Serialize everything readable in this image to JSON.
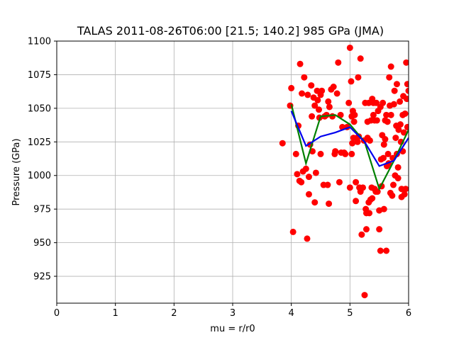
{
  "chart_data": {
    "type": "scatter",
    "title": "TALAS 2011-08-26T06:00 [21.5; 140.2] 985 GPa (JMA)",
    "xlabel": "mu = r/r0",
    "ylabel": "Pressure (GPa)",
    "xlim": [
      0,
      6
    ],
    "ylim": [
      905,
      1100
    ],
    "xticks": [
      0,
      1,
      2,
      3,
      4,
      5,
      6
    ],
    "yticks": [
      925,
      950,
      975,
      1000,
      1025,
      1050,
      1075,
      1100
    ],
    "grid": true,
    "series": [
      {
        "type": "scatter",
        "color": "#ff0000",
        "points": [
          [
            3.85,
            1024
          ],
          [
            3.98,
            1052
          ],
          [
            4.0,
            1065
          ],
          [
            4.03,
            958
          ],
          [
            4.08,
            1016
          ],
          [
            4.1,
            1001
          ],
          [
            4.12,
            1037
          ],
          [
            4.14,
            996
          ],
          [
            4.15,
            1083
          ],
          [
            4.17,
            995
          ],
          [
            4.18,
            1061
          ],
          [
            4.2,
            1003
          ],
          [
            4.22,
            1073
          ],
          [
            4.25,
            1005
          ],
          [
            4.27,
            953
          ],
          [
            4.28,
            1060
          ],
          [
            4.3,
            999
          ],
          [
            4.3,
            986
          ],
          [
            4.32,
            1023
          ],
          [
            4.34,
            1067
          ],
          [
            4.35,
            1044
          ],
          [
            4.36,
            1018
          ],
          [
            4.38,
            1058
          ],
          [
            4.4,
            980
          ],
          [
            4.4,
            1052
          ],
          [
            4.42,
            1002
          ],
          [
            4.44,
            1063
          ],
          [
            4.45,
            1056
          ],
          [
            4.47,
            1049
          ],
          [
            4.48,
            1043
          ],
          [
            4.5,
            1016
          ],
          [
            4.5,
            1060
          ],
          [
            4.52,
            1063
          ],
          [
            4.55,
            993
          ],
          [
            4.57,
            1044
          ],
          [
            4.6,
            1045
          ],
          [
            4.62,
            993
          ],
          [
            4.63,
            1055
          ],
          [
            4.64,
            979
          ],
          [
            4.65,
            1051
          ],
          [
            4.68,
            1064
          ],
          [
            4.7,
            1044
          ],
          [
            4.72,
            1066
          ],
          [
            4.74,
            1016
          ],
          [
            4.75,
            1018
          ],
          [
            4.78,
            1061
          ],
          [
            4.8,
            1084
          ],
          [
            4.82,
            995
          ],
          [
            4.84,
            1045
          ],
          [
            4.85,
            1017
          ],
          [
            4.87,
            1036
          ],
          [
            4.9,
            1017
          ],
          [
            4.92,
            1016
          ],
          [
            4.95,
            1036
          ],
          [
            5.0,
            1095
          ],
          [
            4.98,
            1054
          ],
          [
            5.0,
            991
          ],
          [
            5.02,
            1070
          ],
          [
            5.03,
            1044
          ],
          [
            5.03,
            1016
          ],
          [
            5.04,
            1024
          ],
          [
            5.05,
            1048
          ],
          [
            5.06,
            1028
          ],
          [
            5.07,
            1040
          ],
          [
            5.08,
            1045
          ],
          [
            5.1,
            995
          ],
          [
            5.1,
            981
          ],
          [
            5.12,
            1028
          ],
          [
            5.13,
            1025
          ],
          [
            5.14,
            1073
          ],
          [
            5.15,
            1029
          ],
          [
            5.16,
            991
          ],
          [
            5.18,
            1087
          ],
          [
            5.18,
            988
          ],
          [
            5.2,
            956
          ],
          [
            5.22,
            991
          ],
          [
            5.24,
            1026
          ],
          [
            5.25,
            911
          ],
          [
            5.26,
            1054
          ],
          [
            5.27,
            975
          ],
          [
            5.28,
            960
          ],
          [
            5.28,
            972
          ],
          [
            5.3,
            1040
          ],
          [
            5.3,
            1028
          ],
          [
            5.32,
            1054
          ],
          [
            5.32,
            980
          ],
          [
            5.33,
            972
          ],
          [
            5.34,
            1026
          ],
          [
            5.35,
            982
          ],
          [
            5.36,
            1041
          ],
          [
            5.37,
            991
          ],
          [
            5.38,
            1057
          ],
          [
            5.38,
            983
          ],
          [
            5.4,
            1054
          ],
          [
            5.4,
            1045
          ],
          [
            5.42,
            1041
          ],
          [
            5.42,
            990
          ],
          [
            5.44,
            988
          ],
          [
            5.45,
            1054
          ],
          [
            5.46,
            1041
          ],
          [
            5.47,
            988
          ],
          [
            5.48,
            1048
          ],
          [
            5.5,
            960
          ],
          [
            5.5,
            974
          ],
          [
            5.52,
            944
          ],
          [
            5.52,
            1051
          ],
          [
            5.53,
            1012
          ],
          [
            5.54,
            992
          ],
          [
            5.55,
            1030
          ],
          [
            5.56,
            1054
          ],
          [
            5.57,
            1013
          ],
          [
            5.58,
            975
          ],
          [
            5.58,
            1023
          ],
          [
            5.6,
            1041
          ],
          [
            5.6,
            1027
          ],
          [
            5.62,
            944
          ],
          [
            5.62,
            1045
          ],
          [
            5.63,
            1007
          ],
          [
            5.64,
            1040
          ],
          [
            5.65,
            1016
          ],
          [
            5.66,
            1009
          ],
          [
            5.67,
            1073
          ],
          [
            5.68,
            1052
          ],
          [
            5.69,
            987
          ],
          [
            5.7,
            1081
          ],
          [
            5.7,
            1045
          ],
          [
            5.72,
            985
          ],
          [
            5.73,
            1013
          ],
          [
            5.74,
            993
          ],
          [
            5.75,
            1053
          ],
          [
            5.76,
            1063
          ],
          [
            5.77,
            1000
          ],
          [
            5.78,
            1028
          ],
          [
            5.79,
            1037
          ],
          [
            5.8,
            1068
          ],
          [
            5.8,
            1016
          ],
          [
            5.82,
            1006
          ],
          [
            5.82,
            998
          ],
          [
            5.83,
            1034
          ],
          [
            5.85,
            1055
          ],
          [
            5.86,
            1038
          ],
          [
            5.87,
            1025
          ],
          [
            5.88,
            990
          ],
          [
            5.88,
            984
          ],
          [
            5.9,
            1045
          ],
          [
            5.9,
            1018
          ],
          [
            5.91,
            1059
          ],
          [
            5.92,
            1032
          ],
          [
            5.93,
            986
          ],
          [
            5.94,
            1046
          ],
          [
            5.95,
            990
          ],
          [
            5.96,
            1084
          ],
          [
            5.97,
            1057
          ],
          [
            5.98,
            1068
          ],
          [
            5.98,
            1036
          ],
          [
            6.0,
            1063
          ]
        ]
      },
      {
        "type": "line",
        "color": "#008000",
        "points": [
          [
            4.0,
            1053
          ],
          [
            4.25,
            1009
          ],
          [
            4.5,
            1044
          ],
          [
            4.75,
            1045
          ],
          [
            5.0,
            1038
          ],
          [
            5.25,
            1025
          ],
          [
            5.5,
            990
          ],
          [
            5.75,
            1011
          ],
          [
            6.0,
            1034
          ]
        ]
      },
      {
        "type": "line",
        "color": "#0000ee",
        "points": [
          [
            4.0,
            1048
          ],
          [
            4.25,
            1022
          ],
          [
            4.5,
            1029
          ],
          [
            4.75,
            1032
          ],
          [
            5.0,
            1036
          ],
          [
            5.25,
            1025
          ],
          [
            5.5,
            1007
          ],
          [
            5.75,
            1011
          ],
          [
            6.0,
            1028
          ]
        ]
      }
    ]
  }
}
